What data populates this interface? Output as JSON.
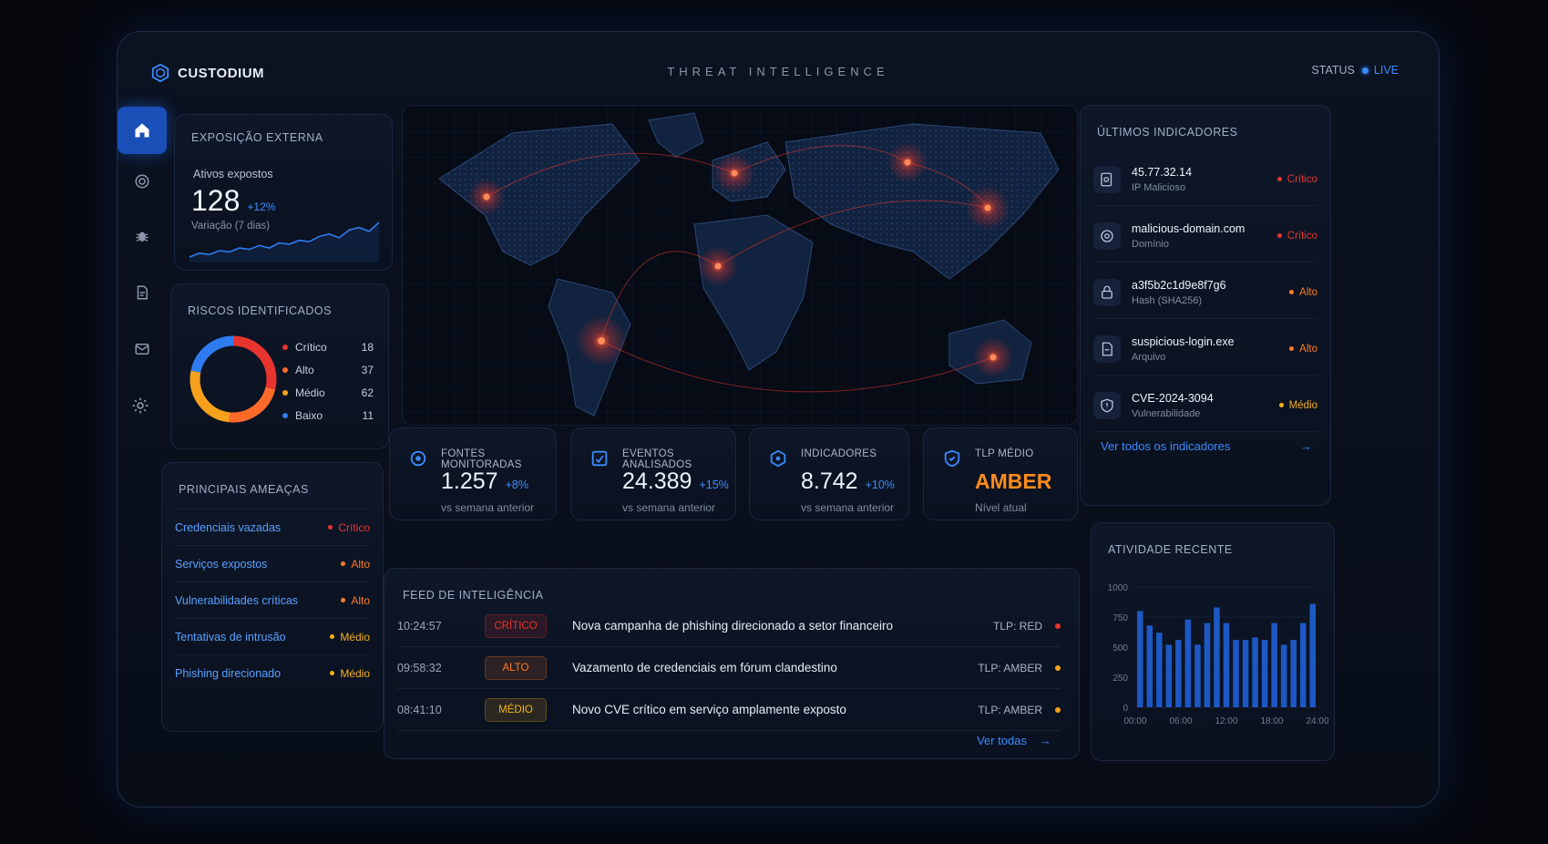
{
  "brand": {
    "name": "CUSTODIUM"
  },
  "header": {
    "title": "THREAT INTELLIGENCE",
    "status_label": "STATUS",
    "status_value": "LIVE"
  },
  "sidebar": [
    {
      "icon": "home-icon"
    },
    {
      "icon": "target-icon"
    },
    {
      "icon": "bug-icon"
    },
    {
      "icon": "report-icon"
    },
    {
      "icon": "mail-icon"
    },
    {
      "icon": "gear-icon"
    }
  ],
  "exposure": {
    "title": "EXPOSIÇÃO EXTERNA",
    "label": "Ativos expostos",
    "value": "128",
    "delta": "+12%",
    "sub": "Variação (7 dias)",
    "trend": [
      6,
      9,
      8,
      11,
      10,
      13,
      12,
      15,
      13,
      17,
      16,
      19,
      18,
      22,
      24,
      21,
      27,
      29,
      26,
      33
    ]
  },
  "risks": {
    "title": "RISCOS IDENTIFICADOS",
    "items": [
      {
        "label": "Crítico",
        "count": "18",
        "color": "#e8342f"
      },
      {
        "label": "Alto",
        "count": "37",
        "color": "#ff6a2b"
      },
      {
        "label": "Médio",
        "count": "62",
        "color": "#f5a11c"
      },
      {
        "label": "Baixo",
        "count": "11",
        "color": "#2f7bf0"
      }
    ]
  },
  "threats": {
    "title": "PRINCIPAIS AMEAÇAS",
    "items": [
      {
        "label": "Credenciais vazadas",
        "sev": "Crítico",
        "color": "#e8342f"
      },
      {
        "label": "Serviços expostos",
        "sev": "Alto",
        "color": "#ff7a26"
      },
      {
        "label": "Vulnerabilidades críticas",
        "sev": "Alto",
        "color": "#ff7a26"
      },
      {
        "label": "Tentativas de intrusão",
        "sev": "Médio",
        "color": "#f5b21c"
      },
      {
        "label": "Phishing direcionado",
        "sev": "Médio",
        "color": "#f5b21c"
      }
    ]
  },
  "kpis": [
    {
      "label": "FONTES MONITORADAS",
      "value": "1.257",
      "delta": "+8%",
      "sub": "vs semana anterior",
      "icon": "radar-icon"
    },
    {
      "label": "EVENTOS ANALISADOS",
      "value": "24.389",
      "delta": "+15%",
      "sub": "vs semana anterior",
      "icon": "chart-check-icon"
    },
    {
      "label": "INDICADORES",
      "value": "8.742",
      "delta": "+10%",
      "sub": "vs semana anterior",
      "icon": "hexagon-icon"
    },
    {
      "label": "TLP MÉDIO",
      "value": "AMBER",
      "delta": "",
      "sub": "Nível atual",
      "icon": "shield-icon"
    }
  ],
  "feed": {
    "title": "FEED DE INTELIGÊNCIA",
    "link": "Ver todas",
    "items": [
      {
        "time": "10:24:57",
        "badge": "CRÍTICO",
        "badge_color": "#e8342f",
        "text": "Nova campanha de phishing direcionado a setor financeiro",
        "tlp": "TLP: RED",
        "dot": "#e8342f"
      },
      {
        "time": "09:58:32",
        "badge": "ALTO",
        "badge_color": "#ff7a26",
        "text": "Vazamento de credenciais em fórum clandestino",
        "tlp": "TLP: AMBER",
        "dot": "#f5a11c"
      },
      {
        "time": "08:41:10",
        "badge": "MÉDIO",
        "badge_color": "#f5b21c",
        "text": "Novo CVE crítico em serviço amplamente exposto",
        "tlp": "TLP: AMBER",
        "dot": "#f5a11c"
      }
    ]
  },
  "indicators": {
    "title": "ÚLTIMOS INDICADORES",
    "link": "Ver todos os indicadores",
    "items": [
      {
        "value": "45.77.32.14",
        "type": "IP Malicioso",
        "sev": "Crítico",
        "color": "#e8342f",
        "icon": "ip-search-icon"
      },
      {
        "value": "malicious-domain.com",
        "type": "Domínio",
        "sev": "Crítico",
        "color": "#e8342f",
        "icon": "globe-icon"
      },
      {
        "value": "a3f5b2c1d9e8f7g6",
        "type": "Hash (SHA256)",
        "sev": "Alto",
        "color": "#ff7a26",
        "icon": "lock-icon"
      },
      {
        "value": "suspicious-login.exe",
        "type": "Arquivo",
        "sev": "Alto",
        "color": "#ff7a26",
        "icon": "file-icon"
      },
      {
        "value": "CVE-2024-3094",
        "type": "Vulnerabilidade",
        "sev": "Médio",
        "color": "#f5b21c",
        "icon": "shield-alert-icon"
      }
    ]
  },
  "activity": {
    "title": "ATIVIDADE RECENTE",
    "chart_data": {
      "type": "bar",
      "ylim": [
        0,
        1000
      ],
      "yticks": [
        "1000",
        "750",
        "500",
        "250",
        "0"
      ],
      "xticks": [
        "00:00",
        "06:00",
        "12:00",
        "18:00",
        "24:00"
      ],
      "values": [
        800,
        680,
        620,
        520,
        560,
        730,
        520,
        700,
        830,
        700,
        560,
        560,
        580,
        560,
        700,
        520,
        560,
        700,
        860
      ]
    }
  },
  "colors": {
    "accent": "#2f7bf0",
    "critical": "#e8342f",
    "high": "#ff7a26",
    "medium": "#f5b21c",
    "amber": "#ff8c1a"
  }
}
